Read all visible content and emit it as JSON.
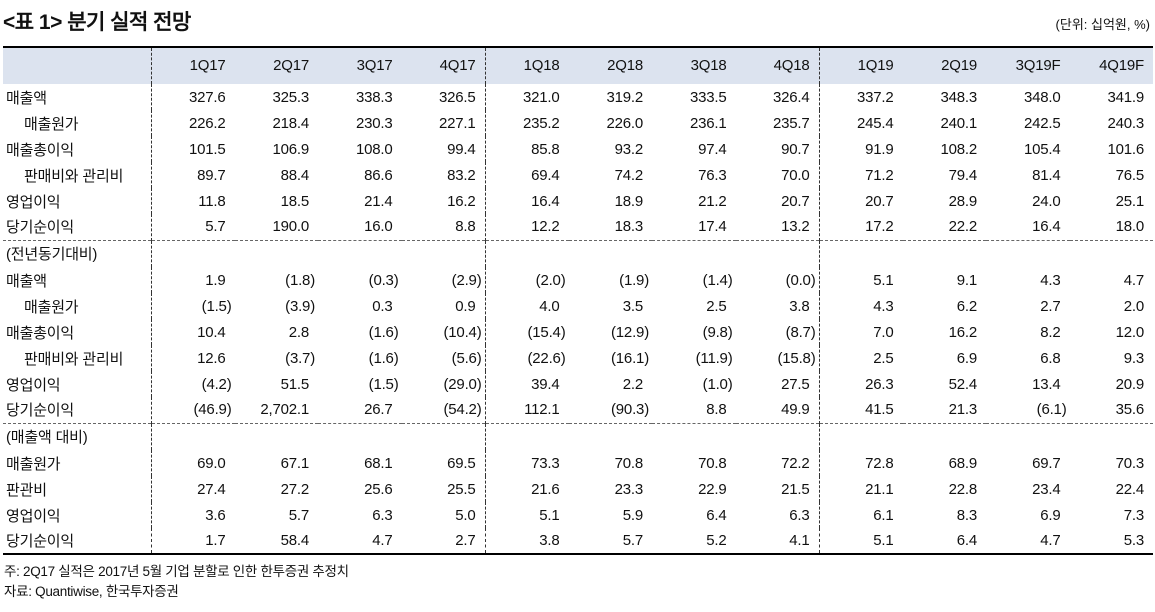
{
  "title": "<표 1> 분기 실적 전망",
  "unit_note": "(단위: 십억원, %)",
  "table": {
    "columns": [
      "1Q17",
      "2Q17",
      "3Q17",
      "4Q17",
      "1Q18",
      "2Q18",
      "3Q18",
      "4Q18",
      "1Q19",
      "2Q19",
      "3Q19F",
      "4Q19F"
    ],
    "sections": [
      {
        "header": null,
        "rows": [
          {
            "label": "매출액",
            "indent": false,
            "values": [
              "327.6",
              "325.3",
              "338.3",
              "326.5",
              "321.0",
              "319.2",
              "333.5",
              "326.4",
              "337.2",
              "348.3",
              "348.0",
              "341.9"
            ]
          },
          {
            "label": "매출원가",
            "indent": true,
            "values": [
              "226.2",
              "218.4",
              "230.3",
              "227.1",
              "235.2",
              "226.0",
              "236.1",
              "235.7",
              "245.4",
              "240.1",
              "242.5",
              "240.3"
            ]
          },
          {
            "label": "매출총이익",
            "indent": false,
            "values": [
              "101.5",
              "106.9",
              "108.0",
              "99.4",
              "85.8",
              "93.2",
              "97.4",
              "90.7",
              "91.9",
              "108.2",
              "105.4",
              "101.6"
            ]
          },
          {
            "label": "판매비와 관리비",
            "indent": true,
            "values": [
              "89.7",
              "88.4",
              "86.6",
              "83.2",
              "69.4",
              "74.2",
              "76.3",
              "70.0",
              "71.2",
              "79.4",
              "81.4",
              "76.5"
            ]
          },
          {
            "label": "영업이익",
            "indent": false,
            "values": [
              "11.8",
              "18.5",
              "21.4",
              "16.2",
              "16.4",
              "18.9",
              "21.2",
              "20.7",
              "20.7",
              "28.9",
              "24.0",
              "25.1"
            ]
          },
          {
            "label": "당기순이익",
            "indent": false,
            "values": [
              "5.7",
              "190.0",
              "16.0",
              "8.8",
              "12.2",
              "18.3",
              "17.4",
              "13.2",
              "17.2",
              "22.2",
              "16.4",
              "18.0"
            ]
          }
        ]
      },
      {
        "header": "(전년동기대비)",
        "rows": [
          {
            "label": "매출액",
            "indent": false,
            "values": [
              "1.9",
              "(1.8)",
              "(0.3)",
              "(2.9)",
              "(2.0)",
              "(1.9)",
              "(1.4)",
              "(0.0)",
              "5.1",
              "9.1",
              "4.3",
              "4.7"
            ]
          },
          {
            "label": "매출원가",
            "indent": true,
            "values": [
              "(1.5)",
              "(3.9)",
              "0.3",
              "0.9",
              "4.0",
              "3.5",
              "2.5",
              "3.8",
              "4.3",
              "6.2",
              "2.7",
              "2.0"
            ]
          },
          {
            "label": "매출총이익",
            "indent": false,
            "values": [
              "10.4",
              "2.8",
              "(1.6)",
              "(10.4)",
              "(15.4)",
              "(12.9)",
              "(9.8)",
              "(8.7)",
              "7.0",
              "16.2",
              "8.2",
              "12.0"
            ]
          },
          {
            "label": "판매비와 관리비",
            "indent": true,
            "values": [
              "12.6",
              "(3.7)",
              "(1.6)",
              "(5.6)",
              "(22.6)",
              "(16.1)",
              "(11.9)",
              "(15.8)",
              "2.5",
              "6.9",
              "6.8",
              "9.3"
            ]
          },
          {
            "label": "영업이익",
            "indent": false,
            "values": [
              "(4.2)",
              "51.5",
              "(1.5)",
              "(29.0)",
              "39.4",
              "2.2",
              "(1.0)",
              "27.5",
              "26.3",
              "52.4",
              "13.4",
              "20.9"
            ]
          },
          {
            "label": "당기순이익",
            "indent": false,
            "values": [
              "(46.9)",
              "2,702.1",
              "26.7",
              "(54.2)",
              "112.1",
              "(90.3)",
              "8.8",
              "49.9",
              "41.5",
              "21.3",
              "(6.1)",
              "35.6"
            ]
          }
        ]
      },
      {
        "header": "(매출액 대비)",
        "rows": [
          {
            "label": "매출원가",
            "indent": false,
            "values": [
              "69.0",
              "67.1",
              "68.1",
              "69.5",
              "73.3",
              "70.8",
              "70.8",
              "72.2",
              "72.8",
              "68.9",
              "69.7",
              "70.3"
            ]
          },
          {
            "label": "판관비",
            "indent": false,
            "values": [
              "27.4",
              "27.2",
              "25.6",
              "25.5",
              "21.6",
              "23.3",
              "22.9",
              "21.5",
              "21.1",
              "22.8",
              "23.4",
              "22.4"
            ]
          },
          {
            "label": "영업이익",
            "indent": false,
            "values": [
              "3.6",
              "5.7",
              "6.3",
              "5.0",
              "5.1",
              "5.9",
              "6.4",
              "6.3",
              "6.1",
              "8.3",
              "6.9",
              "7.3"
            ]
          },
          {
            "label": "당기순이익",
            "indent": false,
            "values": [
              "1.7",
              "58.4",
              "4.7",
              "2.7",
              "3.8",
              "5.7",
              "5.2",
              "4.1",
              "5.1",
              "6.4",
              "4.7",
              "5.3"
            ]
          }
        ]
      }
    ]
  },
  "notes": [
    "주: 2Q17 실적은 2017년 5월 기업 분할로 인한 한투증권 추정치",
    "자료: Quantiwise, 한국투자증권"
  ]
}
